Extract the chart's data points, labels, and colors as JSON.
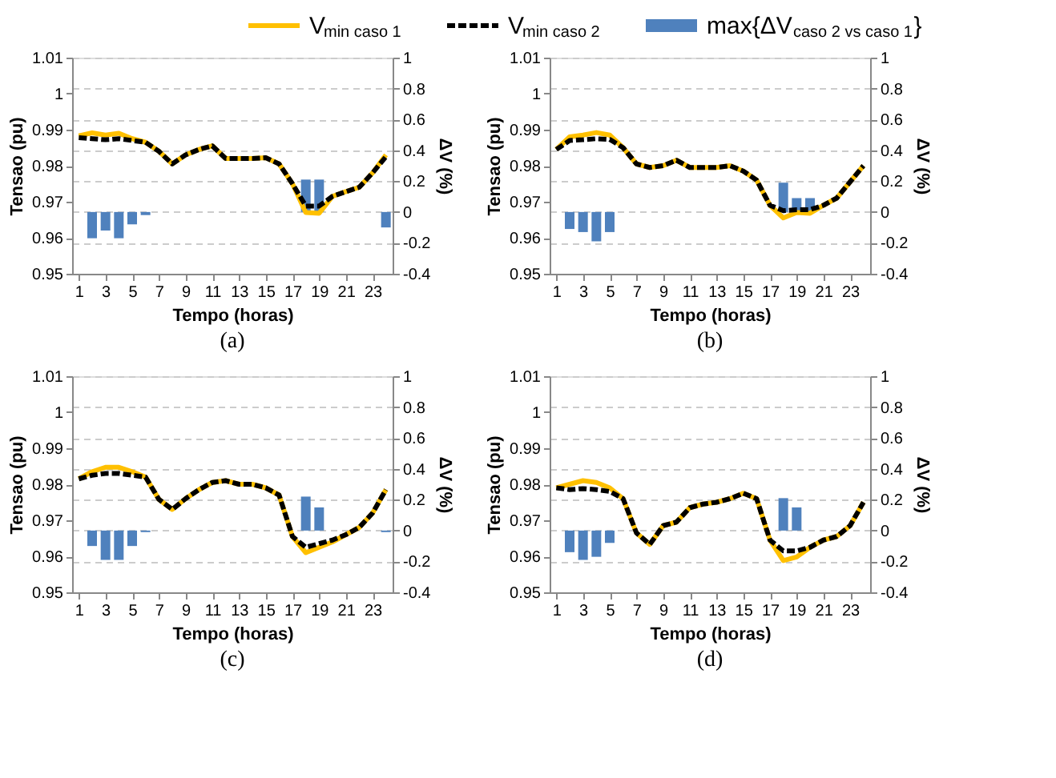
{
  "chart_data": [
    {
      "type": "line",
      "x": [
        1,
        2,
        3,
        4,
        5,
        6,
        7,
        8,
        9,
        10,
        11,
        12,
        13,
        14,
        15,
        16,
        17,
        18,
        19,
        20,
        21,
        22,
        23,
        24
      ],
      "xlim": [
        0.5,
        24.5
      ],
      "xticks": [
        1,
        3,
        5,
        7,
        9,
        11,
        13,
        15,
        17,
        19,
        21,
        23
      ],
      "ylim": [
        0.95,
        1.01
      ],
      "yticks": [
        0.95,
        0.96,
        0.97,
        0.98,
        0.99,
        1,
        1.01
      ],
      "y2lim": [
        -0.4,
        1
      ],
      "y2ticks": [
        -0.4,
        -0.2,
        0,
        0.2,
        0.4,
        0.6,
        0.8,
        1
      ],
      "xlabel": "Tempo (horas)",
      "ylabel": "Tensao (pu)",
      "y2label": "ΔV (%)",
      "annotations": [
        "(a)"
      ],
      "grid": "y2",
      "legend": "top",
      "series": [
        {
          "name": "V$_{min caso 1}$",
          "color": "#ffc000",
          "line_style": "solid",
          "values": [
            0.9883,
            0.9891,
            0.9885,
            0.989,
            0.9875,
            0.9865,
            0.984,
            0.9805,
            0.983,
            0.9845,
            0.9855,
            0.982,
            0.982,
            0.982,
            0.9822,
            0.9805,
            0.975,
            0.967,
            0.9668,
            0.9715,
            0.9728,
            0.974,
            0.978,
            0.983
          ]
        },
        {
          "name": "V$_{min caso 2}$",
          "color": "#000000",
          "line_style": "dashed",
          "values": [
            0.9878,
            0.9875,
            0.9872,
            0.9875,
            0.987,
            0.9865,
            0.984,
            0.9805,
            0.983,
            0.9845,
            0.9855,
            0.982,
            0.982,
            0.982,
            0.9822,
            0.9805,
            0.975,
            0.9688,
            0.9688,
            0.9715,
            0.9728,
            0.974,
            0.978,
            0.9825
          ]
        },
        {
          "name": "max{ΔV$_{caso 2 vs caso 1}$}",
          "type": "bar",
          "axis": "y2",
          "color": "#4f81bd",
          "values": [
            0,
            -0.17,
            -0.12,
            -0.17,
            -0.08,
            -0.02,
            0,
            0,
            0,
            0,
            0,
            0,
            0,
            0,
            0,
            0,
            0,
            0.21,
            0.21,
            0,
            0,
            0,
            0,
            -0.1
          ]
        }
      ]
    },
    {
      "type": "line",
      "x": [
        1,
        2,
        3,
        4,
        5,
        6,
        7,
        8,
        9,
        10,
        11,
        12,
        13,
        14,
        15,
        16,
        17,
        18,
        19,
        20,
        21,
        22,
        23,
        24
      ],
      "xlim": [
        0.5,
        24.5
      ],
      "xticks": [
        1,
        3,
        5,
        7,
        9,
        11,
        13,
        15,
        17,
        19,
        21,
        23
      ],
      "ylim": [
        0.95,
        1.01
      ],
      "yticks": [
        0.95,
        0.96,
        0.97,
        0.98,
        0.99,
        1,
        1.01
      ],
      "y2lim": [
        -0.4,
        1
      ],
      "y2ticks": [
        -0.4,
        -0.2,
        0,
        0.2,
        0.4,
        0.6,
        0.8,
        1
      ],
      "xlabel": "Tempo (horas)",
      "ylabel": "Tensao (pu)",
      "y2label": "ΔV (%)",
      "annotations": [
        "(b)"
      ],
      "grid": "y2",
      "series": [
        {
          "color": "#ffc000",
          "line_style": "solid",
          "values": [
            0.9845,
            0.988,
            0.9885,
            0.9892,
            0.9885,
            0.985,
            0.9805,
            0.9795,
            0.98,
            0.9815,
            0.9795,
            0.9795,
            0.9795,
            0.98,
            0.9785,
            0.976,
            0.969,
            0.9655,
            0.967,
            0.9668,
            0.969,
            0.971,
            0.9755,
            0.98
          ]
        },
        {
          "color": "#000000",
          "line_style": "dashed",
          "values": [
            0.9845,
            0.987,
            0.9872,
            0.9875,
            0.9873,
            0.985,
            0.9805,
            0.9795,
            0.98,
            0.9815,
            0.9795,
            0.9795,
            0.9795,
            0.98,
            0.9785,
            0.976,
            0.969,
            0.9675,
            0.9678,
            0.9678,
            0.969,
            0.971,
            0.9755,
            0.98
          ]
        },
        {
          "type": "bar",
          "axis": "y2",
          "color": "#4f81bd",
          "values": [
            0,
            -0.11,
            -0.13,
            -0.19,
            -0.13,
            0,
            0,
            0,
            0,
            0,
            0,
            0,
            0,
            0,
            0,
            0,
            0,
            0.19,
            0.09,
            0.09,
            0,
            0,
            0,
            0
          ]
        }
      ]
    },
    {
      "type": "line",
      "x": [
        1,
        2,
        3,
        4,
        5,
        6,
        7,
        8,
        9,
        10,
        11,
        12,
        13,
        14,
        15,
        16,
        17,
        18,
        19,
        20,
        21,
        22,
        23,
        24
      ],
      "xlim": [
        0.5,
        24.5
      ],
      "xticks": [
        1,
        3,
        5,
        7,
        9,
        11,
        13,
        15,
        17,
        19,
        21,
        23
      ],
      "ylim": [
        0.95,
        1.01
      ],
      "yticks": [
        0.95,
        0.96,
        0.97,
        0.98,
        0.99,
        1,
        1.01
      ],
      "y2lim": [
        -0.4,
        1
      ],
      "y2ticks": [
        -0.4,
        -0.2,
        0,
        0.2,
        0.4,
        0.6,
        0.8,
        1
      ],
      "xlabel": "Tempo (horas)",
      "ylabel": "Tensao (pu)",
      "y2label": "ΔV (%)",
      "annotations": [
        "(c)"
      ],
      "grid": "y2",
      "series": [
        {
          "color": "#ffc000",
          "line_style": "solid",
          "values": [
            0.9815,
            0.9835,
            0.9847,
            0.9847,
            0.9835,
            0.982,
            0.9758,
            0.973,
            0.976,
            0.9785,
            0.9805,
            0.981,
            0.98,
            0.98,
            0.979,
            0.977,
            0.9655,
            0.961,
            0.9625,
            0.964,
            0.966,
            0.968,
            0.972,
            0.9785
          ]
        },
        {
          "color": "#000000",
          "line_style": "dashed",
          "values": [
            0.9815,
            0.9825,
            0.983,
            0.983,
            0.9825,
            0.982,
            0.9758,
            0.973,
            0.976,
            0.9785,
            0.9805,
            0.981,
            0.98,
            0.98,
            0.979,
            0.977,
            0.9655,
            0.9625,
            0.9635,
            0.9645,
            0.966,
            0.968,
            0.972,
            0.9785
          ]
        },
        {
          "type": "bar",
          "axis": "y2",
          "color": "#4f81bd",
          "values": [
            0,
            -0.1,
            -0.19,
            -0.19,
            -0.1,
            -0.01,
            0,
            0,
            0,
            0,
            0,
            0,
            0,
            0,
            0,
            0,
            0,
            0.22,
            0.15,
            0,
            0,
            0,
            0,
            -0.01
          ]
        }
      ]
    },
    {
      "type": "line",
      "x": [
        1,
        2,
        3,
        4,
        5,
        6,
        7,
        8,
        9,
        10,
        11,
        12,
        13,
        14,
        15,
        16,
        17,
        18,
        19,
        20,
        21,
        22,
        23,
        24
      ],
      "xlim": [
        0.5,
        24.5
      ],
      "xticks": [
        1,
        3,
        5,
        7,
        9,
        11,
        13,
        15,
        17,
        19,
        21,
        23
      ],
      "ylim": [
        0.95,
        1.01
      ],
      "yticks": [
        0.95,
        0.96,
        0.97,
        0.98,
        0.99,
        1,
        1.01
      ],
      "y2lim": [
        -0.4,
        1
      ],
      "y2ticks": [
        -0.4,
        -0.2,
        0,
        0.2,
        0.4,
        0.6,
        0.8,
        1
      ],
      "xlabel": "Tempo (horas)",
      "ylabel": "Tensao (pu)",
      "y2label": "ΔV (%)",
      "annotations": [
        "(d)"
      ],
      "grid": "y2",
      "series": [
        {
          "color": "#ffc000",
          "line_style": "solid",
          "values": [
            0.979,
            0.98,
            0.981,
            0.9805,
            0.979,
            0.976,
            0.9665,
            0.9633,
            0.9685,
            0.9695,
            0.9735,
            0.9745,
            0.975,
            0.976,
            0.9775,
            0.976,
            0.9645,
            0.9588,
            0.9598,
            0.9625,
            0.9645,
            0.9655,
            0.9685,
            0.975
          ]
        },
        {
          "color": "#000000",
          "line_style": "dashed",
          "values": [
            0.979,
            0.9785,
            0.9788,
            0.9785,
            0.978,
            0.976,
            0.9665,
            0.9633,
            0.9685,
            0.9695,
            0.9735,
            0.9745,
            0.975,
            0.976,
            0.9775,
            0.976,
            0.9645,
            0.9615,
            0.9615,
            0.9625,
            0.9645,
            0.9655,
            0.9685,
            0.975
          ]
        },
        {
          "type": "bar",
          "axis": "y2",
          "color": "#4f81bd",
          "values": [
            0,
            -0.14,
            -0.19,
            -0.17,
            -0.08,
            0,
            0,
            0,
            0,
            0,
            0,
            0,
            0,
            0,
            0,
            0,
            0,
            0.21,
            0.15,
            0,
            0,
            0,
            0,
            0
          ]
        }
      ]
    }
  ]
}
